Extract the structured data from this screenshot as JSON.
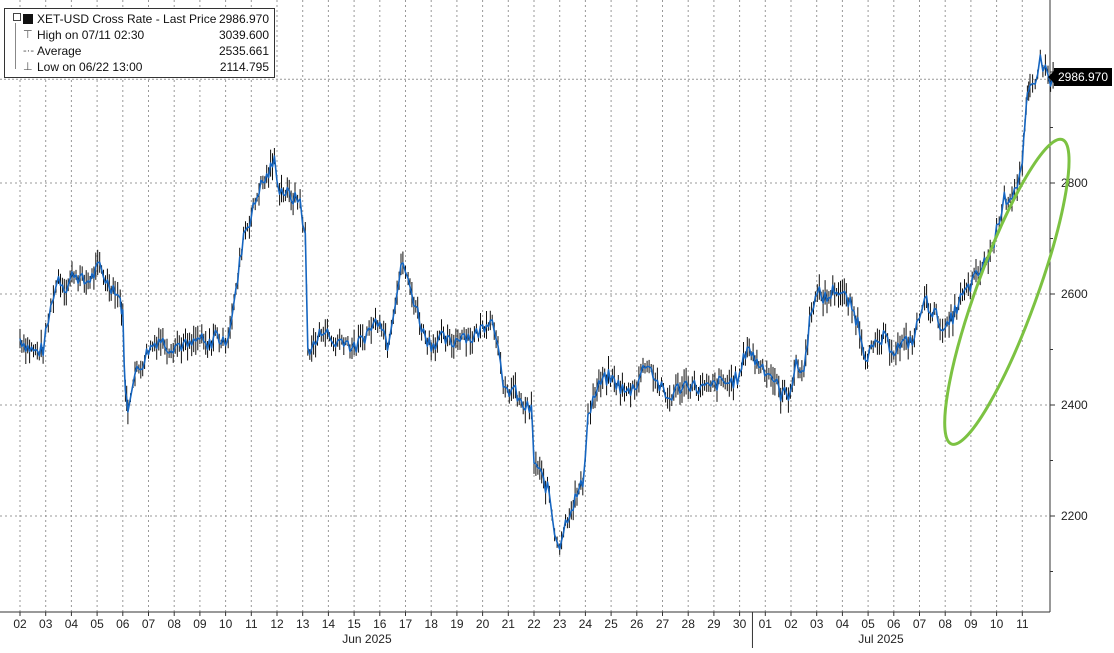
{
  "legend": {
    "title_label": "XET-USD Cross Rate - Last Price",
    "title_value": "2986.970",
    "high_label": "High on 07/11 02:30",
    "high_value": "3039.600",
    "avg_label": "Average",
    "avg_value": "2535.661",
    "low_label": "Low on 06/22 13:00",
    "low_value": "2114.795"
  },
  "last_price_tag": "2986.970",
  "colors": {
    "price_line": "#1565c0",
    "candle": "#111111",
    "highlight_ellipse": "#7cc242",
    "grid": "#999999"
  },
  "chart_data": {
    "type": "line",
    "series_name": "XET-USD Cross Rate - Last Price",
    "y_ticks": [
      2200,
      2400,
      2600,
      2800
    ],
    "ylim": [
      2020,
      3060
    ],
    "x_tick_labels": [
      "02",
      "03",
      "04",
      "05",
      "06",
      "07",
      "08",
      "09",
      "10",
      "11",
      "12",
      "13",
      "14",
      "15",
      "16",
      "17",
      "18",
      "19",
      "20",
      "21",
      "22",
      "23",
      "24",
      "25",
      "26",
      "27",
      "28",
      "29",
      "30",
      "01",
      "02",
      "03",
      "04",
      "05",
      "06",
      "07",
      "08",
      "09",
      "10",
      "11"
    ],
    "x_month_labels": [
      {
        "label": "Jun 2025",
        "tick_index": 13.5
      },
      {
        "label": "Jul 2025",
        "tick_index": 33.5
      }
    ],
    "x_data_range": [
      0,
      40.3
    ],
    "series": [
      {
        "name": "",
        "points": [
          [
            0.0,
            2520
          ],
          [
            0.3,
            2505
          ],
          [
            0.6,
            2495
          ],
          [
            0.9,
            2500
          ],
          [
            1.1,
            2550
          ],
          [
            1.3,
            2600
          ],
          [
            1.5,
            2630
          ],
          [
            1.8,
            2610
          ],
          [
            2.1,
            2640
          ],
          [
            2.5,
            2620
          ],
          [
            2.8,
            2630
          ],
          [
            3.1,
            2650
          ],
          [
            3.4,
            2620
          ],
          [
            3.7,
            2610
          ],
          [
            3.9,
            2590
          ],
          [
            4.0,
            2560
          ],
          [
            4.1,
            2420
          ],
          [
            4.2,
            2395
          ],
          [
            4.4,
            2450
          ],
          [
            4.7,
            2470
          ],
          [
            5.0,
            2500
          ],
          [
            5.4,
            2520
          ],
          [
            5.8,
            2505
          ],
          [
            6.2,
            2510
          ],
          [
            6.6,
            2505
          ],
          [
            7.0,
            2520
          ],
          [
            7.3,
            2500
          ],
          [
            7.6,
            2530
          ],
          [
            7.9,
            2510
          ],
          [
            8.1,
            2530
          ],
          [
            8.4,
            2600
          ],
          [
            8.7,
            2710
          ],
          [
            9.0,
            2740
          ],
          [
            9.3,
            2790
          ],
          [
            9.6,
            2810
          ],
          [
            9.9,
            2840
          ],
          [
            10.1,
            2790
          ],
          [
            10.4,
            2780
          ],
          [
            10.7,
            2770
          ],
          [
            10.9,
            2770
          ],
          [
            11.1,
            2700
          ],
          [
            11.2,
            2500
          ],
          [
            11.5,
            2510
          ],
          [
            11.8,
            2540
          ],
          [
            12.2,
            2510
          ],
          [
            12.6,
            2520
          ],
          [
            13.0,
            2500
          ],
          [
            13.5,
            2530
          ],
          [
            14.0,
            2560
          ],
          [
            14.3,
            2510
          ],
          [
            14.6,
            2590
          ],
          [
            14.9,
            2660
          ],
          [
            15.1,
            2620
          ],
          [
            15.4,
            2580
          ],
          [
            15.7,
            2530
          ],
          [
            16.0,
            2510
          ],
          [
            16.4,
            2520
          ],
          [
            16.8,
            2510
          ],
          [
            17.2,
            2530
          ],
          [
            17.6,
            2520
          ],
          [
            18.0,
            2540
          ],
          [
            18.3,
            2560
          ],
          [
            18.6,
            2520
          ],
          [
            18.8,
            2420
          ],
          [
            19.2,
            2430
          ],
          [
            19.5,
            2400
          ],
          [
            19.9,
            2390
          ],
          [
            20.0,
            2300
          ],
          [
            20.3,
            2270
          ],
          [
            20.6,
            2240
          ],
          [
            20.8,
            2170
          ],
          [
            21.0,
            2150
          ],
          [
            21.3,
            2200
          ],
          [
            21.6,
            2230
          ],
          [
            21.9,
            2260
          ],
          [
            22.1,
            2380
          ],
          [
            22.3,
            2410
          ],
          [
            22.6,
            2440
          ],
          [
            22.9,
            2450
          ],
          [
            23.2,
            2440
          ],
          [
            23.6,
            2420
          ],
          [
            24.0,
            2440
          ],
          [
            24.4,
            2480
          ],
          [
            24.8,
            2440
          ],
          [
            25.2,
            2410
          ],
          [
            25.6,
            2430
          ],
          [
            26.0,
            2440
          ],
          [
            26.4,
            2430
          ],
          [
            26.8,
            2430
          ],
          [
            27.2,
            2440
          ],
          [
            27.6,
            2440
          ],
          [
            28.0,
            2450
          ],
          [
            28.3,
            2510
          ],
          [
            28.6,
            2480
          ],
          [
            28.9,
            2470
          ],
          [
            29.3,
            2450
          ],
          [
            29.6,
            2420
          ],
          [
            29.9,
            2420
          ],
          [
            30.2,
            2470
          ],
          [
            30.5,
            2460
          ],
          [
            30.8,
            2580
          ],
          [
            31.1,
            2600
          ],
          [
            31.4,
            2590
          ],
          [
            31.7,
            2610
          ],
          [
            32.0,
            2600
          ],
          [
            32.3,
            2580
          ],
          [
            32.6,
            2550
          ],
          [
            32.9,
            2490
          ],
          [
            33.2,
            2500
          ],
          [
            33.6,
            2520
          ],
          [
            34.0,
            2500
          ],
          [
            34.4,
            2510
          ],
          [
            34.8,
            2520
          ],
          [
            35.0,
            2560
          ],
          [
            35.2,
            2590
          ],
          [
            35.5,
            2570
          ],
          [
            35.8,
            2550
          ],
          [
            36.0,
            2530
          ],
          [
            36.3,
            2560
          ],
          [
            36.6,
            2590
          ],
          [
            36.9,
            2610
          ],
          [
            37.2,
            2630
          ],
          [
            37.6,
            2660
          ],
          [
            37.9,
            2690
          ],
          [
            38.1,
            2740
          ],
          [
            38.3,
            2770
          ],
          [
            38.6,
            2780
          ],
          [
            38.8,
            2800
          ],
          [
            39.0,
            2830
          ],
          [
            39.1,
            2900
          ],
          [
            39.2,
            2950
          ],
          [
            39.3,
            2970
          ],
          [
            39.5,
            2990
          ],
          [
            39.7,
            3020
          ],
          [
            39.9,
            3005
          ],
          [
            40.1,
            2985
          ],
          [
            40.3,
            2987
          ]
        ]
      }
    ],
    "highlight": "green ellipse around the 08–11 Jul rally"
  }
}
